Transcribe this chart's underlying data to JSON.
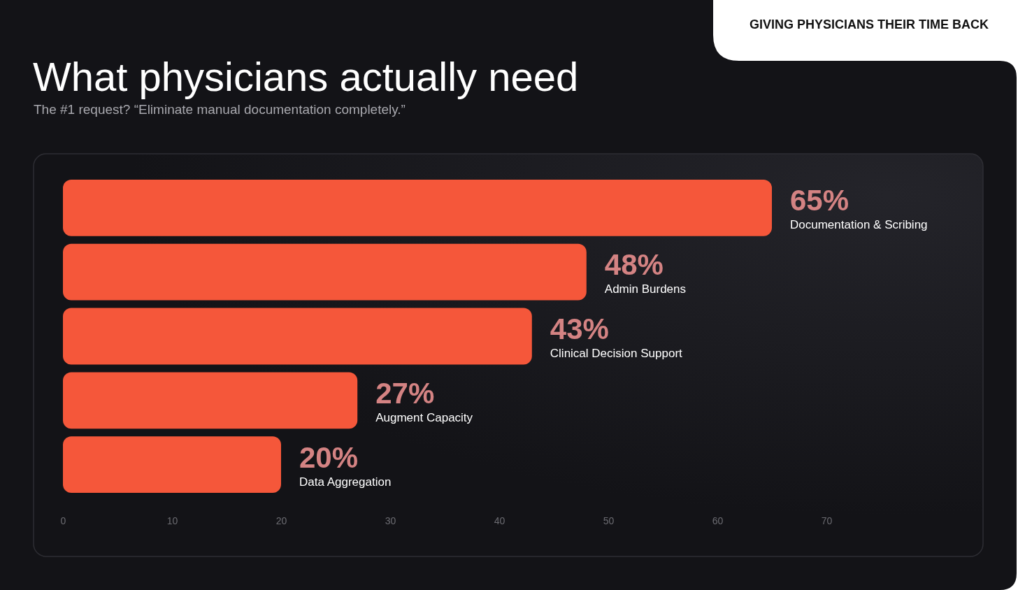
{
  "chart_data": {
    "type": "bar",
    "orientation": "horizontal",
    "title": "What physicians actually need",
    "subtitle": "The #1 request? “Eliminate manual documentation completely.”",
    "annotations": [
      "GIVING PHYSICIANS THEIR TIME BACK"
    ],
    "categories": [
      "Documentation & Scribing",
      "Admin Burdens",
      "Clinical Decision Support",
      "Augment Capacity",
      "Data Aggregation"
    ],
    "values": [
      65,
      48,
      43,
      27,
      20
    ],
    "value_labels": [
      "65%",
      "48%",
      "43%",
      "27%",
      "20%"
    ],
    "color": "#f5573a",
    "xlim": [
      0,
      70
    ],
    "xticks": [
      0,
      10,
      20,
      30,
      40,
      50,
      60,
      70
    ],
    "grid": false,
    "tick_labels": "x"
  }
}
